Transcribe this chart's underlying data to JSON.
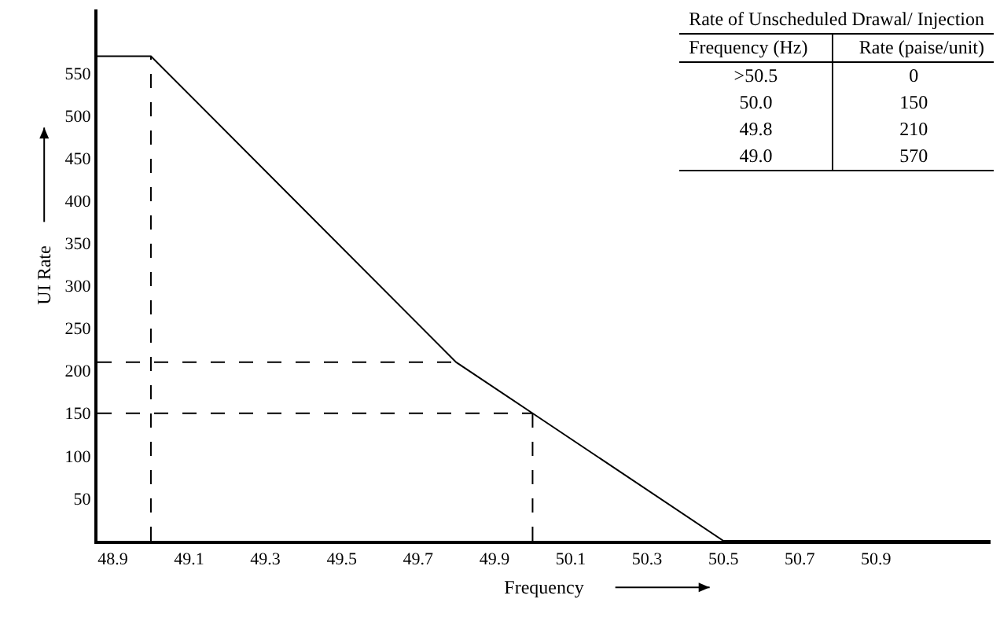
{
  "chart_data": {
    "type": "line",
    "xlabel": "Frequency",
    "ylabel": "UI Rate",
    "series": [
      {
        "color": "#000000",
        "x": [
          48.86,
          49.0,
          49.8,
          50.0,
          50.5,
          51.2
        ],
        "values": [
          570,
          570,
          210,
          150,
          0,
          0
        ],
        "line_style": "solid"
      },
      {
        "color": "#000000",
        "x": [
          49.0,
          49.0
        ],
        "values": [
          0,
          570
        ],
        "line_style": "dashed"
      },
      {
        "color": "#000000",
        "x": [
          48.86,
          49.8
        ],
        "values": [
          210,
          210
        ],
        "line_style": "dashed"
      },
      {
        "color": "#000000",
        "x": [
          48.86,
          50.0
        ],
        "values": [
          150,
          150
        ],
        "line_style": "dashed"
      },
      {
        "color": "#000000",
        "x": [
          50.0,
          50.0
        ],
        "values": [
          0,
          150
        ],
        "line_style": "dashed"
      }
    ],
    "xlim": [
      48.86,
      51.2
    ],
    "xticks": [
      48.9,
      49.1,
      49.3,
      49.5,
      49.7,
      49.9,
      50.1,
      50.3,
      50.5,
      50.7,
      50.9
    ],
    "ylim": [
      0,
      625
    ],
    "yticks": [
      50,
      100,
      150,
      200,
      250,
      300,
      350,
      400,
      450,
      500,
      550
    ],
    "grid": false,
    "marker": "none",
    "annotations": [
      "Rate of Unscheduled Drawal/ Injection",
      "Frequency (Hz)",
      "Rate (paise/unit)",
      ">50.5",
      "0",
      "50.0",
      "150",
      "49.8",
      "210",
      "49.0",
      "570"
    ]
  }
}
